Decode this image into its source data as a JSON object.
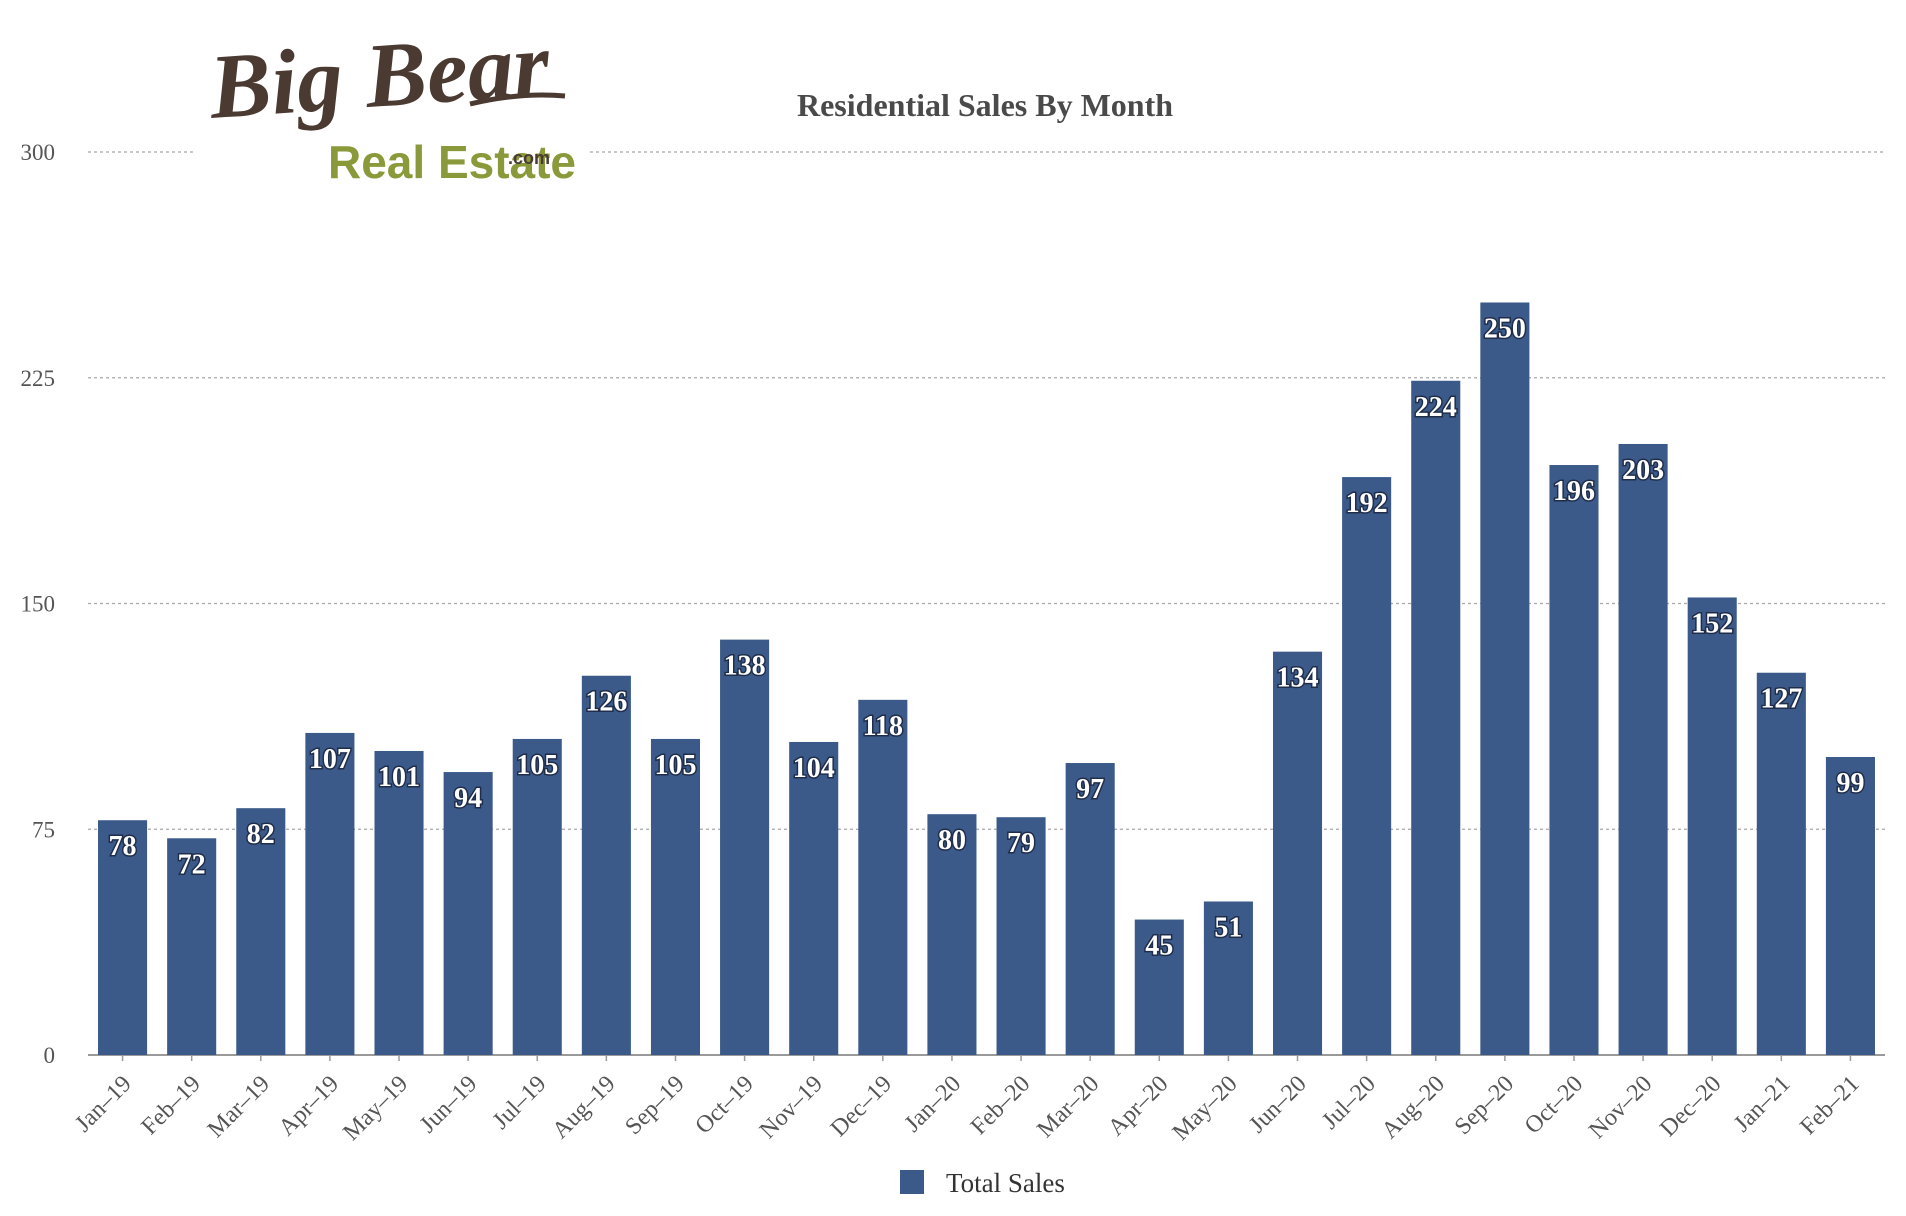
{
  "logo": {
    "line1": "Big Bear",
    "line2": "Real Estate",
    "suffix": ".com"
  },
  "chart_data": {
    "type": "bar",
    "title": "Residential Sales By Month",
    "xlabel": "",
    "ylabel": "",
    "ylim": [
      0,
      300
    ],
    "yticks": [
      0,
      75,
      150,
      225,
      300
    ],
    "grid": true,
    "legend_position": "bottom",
    "bar_color": "#3b5a8a",
    "categories": [
      "Jan–19",
      "Feb–19",
      "Mar–19",
      "Apr–19",
      "May–19",
      "Jun–19",
      "Jul–19",
      "Aug–19",
      "Sep–19",
      "Oct–19",
      "Nov–19",
      "Dec–19",
      "Jan–20",
      "Feb–20",
      "Mar–20",
      "Apr–20",
      "May–20",
      "Jun–20",
      "Jul–20",
      "Aug–20",
      "Sep–20",
      "Oct–20",
      "Nov–20",
      "Dec–20",
      "Jan–21",
      "Feb–21"
    ],
    "series": [
      {
        "name": "Total Sales",
        "values": [
          78,
          72,
          82,
          107,
          101,
          94,
          105,
          126,
          105,
          138,
          104,
          118,
          80,
          79,
          97,
          45,
          51,
          134,
          192,
          224,
          250,
          196,
          203,
          152,
          127,
          99
        ]
      }
    ]
  }
}
